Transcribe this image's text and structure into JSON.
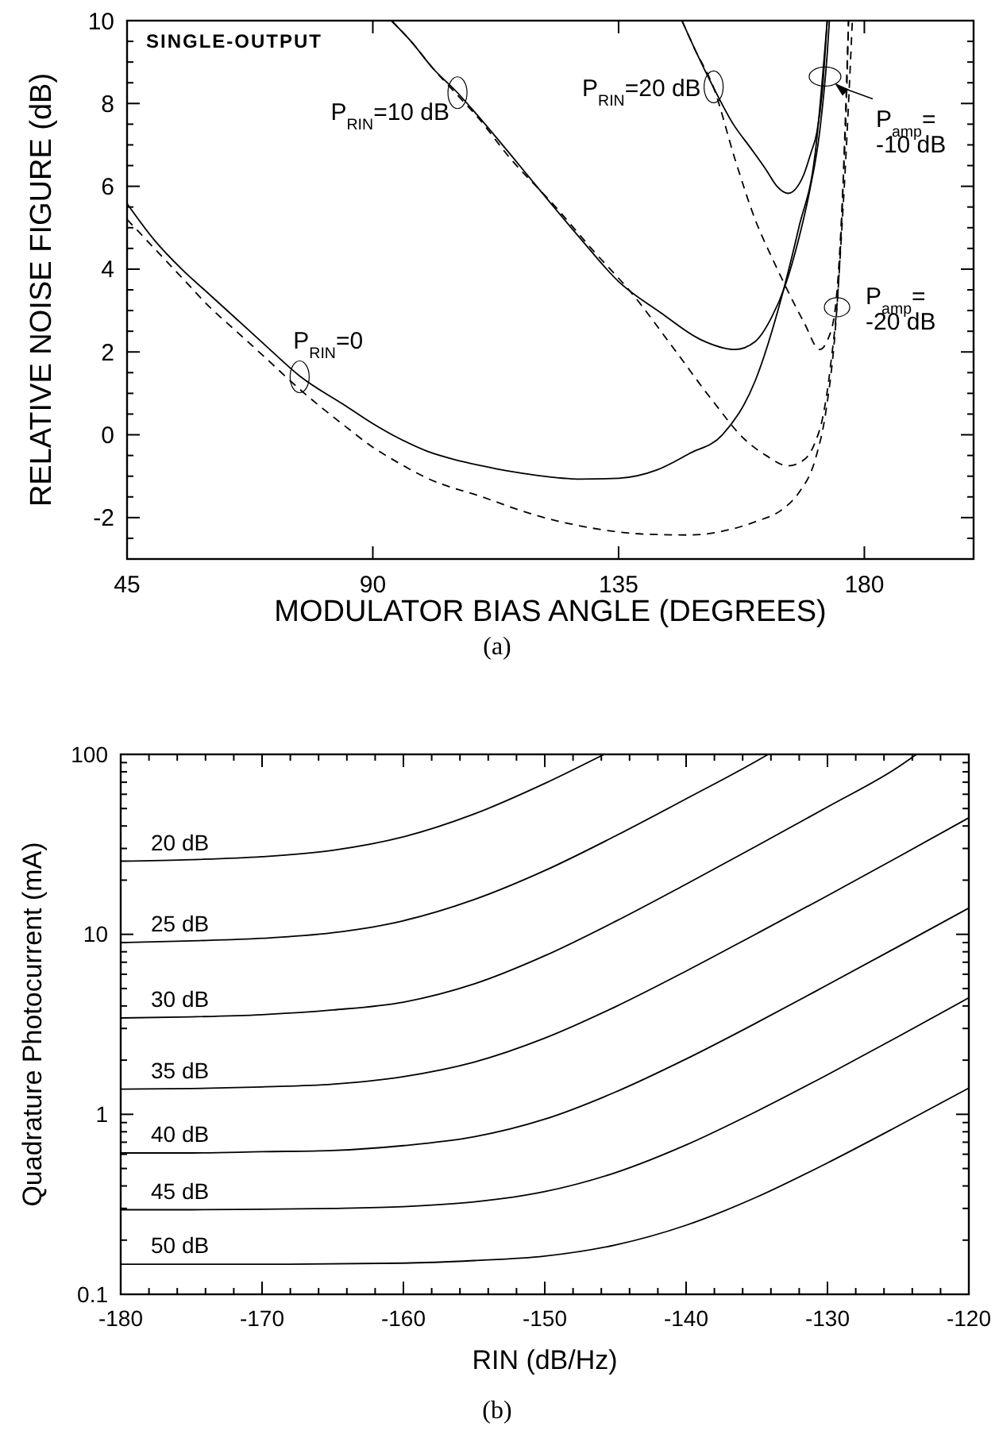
{
  "chart_data": [
    {
      "type": "line",
      "xlabel": "MODULATOR BIAS ANGLE (DEGREES)",
      "ylabel": "RELATIVE NOISE FIGURE (dB)",
      "xlim": [
        45,
        200
      ],
      "ylim": [
        -3,
        10
      ],
      "xticks": [
        45,
        90,
        135,
        180
      ],
      "yticks": [
        -2,
        {
          "value": -2.5,
          "label": null
        },
        {
          "value": -1.5,
          "label": null
        },
        {
          "value": -1,
          "label": null
        },
        {
          "value": -0.5,
          "label": null
        },
        0,
        {
          "value": 0.5,
          "label": null
        },
        {
          "value": 1,
          "label": null
        },
        {
          "value": 1.5,
          "label": null
        },
        2,
        {
          "value": 2.5,
          "label": null
        },
        {
          "value": 3,
          "label": null
        },
        {
          "value": 3.5,
          "label": null
        },
        4,
        {
          "value": 4.5,
          "label": null
        },
        {
          "value": 5,
          "label": null
        },
        {
          "value": 5.5,
          "label": null
        },
        6,
        {
          "value": 6.5,
          "label": null
        },
        {
          "value": 7,
          "label": null
        },
        {
          "value": 7.5,
          "label": null
        },
        8,
        {
          "value": 8.5,
          "label": null
        },
        {
          "value": 9,
          "label": null
        },
        {
          "value": 9.5,
          "label": null
        },
        10
      ],
      "series": [
        {
          "color": "#000000",
          "line_style": "solid",
          "x": [
            45,
            50,
            55,
            60,
            65,
            70,
            76.6,
            85,
            90,
            95,
            100,
            105,
            110,
            115,
            120,
            128,
            135,
            142,
            148,
            154,
            160,
            165,
            168,
            171,
            173.2
          ],
          "values": [
            5.58,
            4.7,
            4,
            3.4,
            2.8,
            2.2,
            1.42,
            0.7,
            0.27,
            -0.1,
            -0.4,
            -0.6,
            -0.75,
            -0.88,
            -0.98,
            -1.07,
            -1.05,
            -0.85,
            -0.45,
            0,
            1.3,
            3.4,
            5,
            6.8,
            10
          ]
        },
        {
          "color": "#000000",
          "line_style": "dashed",
          "x": [
            45,
            50,
            55,
            60,
            65,
            70,
            76.6,
            85,
            90,
            95,
            100,
            110,
            120,
            130,
            140,
            148,
            155,
            160,
            165,
            168,
            171,
            173,
            174.7,
            175.8,
            176.6,
            177.8
          ],
          "values": [
            5.2,
            4.5,
            3.8,
            3.1,
            2.5,
            1.9,
            1.1,
            0.2,
            -0.3,
            -0.7,
            -1.05,
            -1.5,
            -1.95,
            -2.25,
            -2.4,
            -2.42,
            -2.3,
            -2.1,
            -1.8,
            -1.4,
            -0.6,
            0.6,
            2.57,
            4.8,
            6.66,
            10
          ]
        },
        {
          "color": "#000000",
          "line_style": "solid",
          "x": [
            93.4,
            97,
            101,
            105.5,
            109,
            115,
            120,
            128,
            135,
            142.7,
            150,
            156.3,
            160,
            163,
            165.5,
            168,
            170,
            171.8,
            173.2,
            173.6
          ],
          "values": [
            10,
            9.5,
            8.85,
            8.26,
            7.74,
            6.8,
            6,
            4.74,
            3.7,
            2.95,
            2.3,
            2.06,
            2.25,
            2.83,
            3.6,
            4.74,
            5.9,
            7.3,
            9.2,
            10
          ]
        },
        {
          "color": "#000000",
          "line_style": "dashed",
          "x": [
            93.4,
            97,
            101,
            105.5,
            109,
            115,
            123.4,
            130,
            137.9,
            145,
            152.4,
            158,
            162,
            166,
            169,
            170.8,
            172.5,
            173.7,
            175.7,
            176.6,
            177.1
          ],
          "values": [
            10,
            9.5,
            8.85,
            8.2,
            7.7,
            6.7,
            5.51,
            4.5,
            3.34,
            2.1,
            0.79,
            -0.1,
            -0.5,
            -0.75,
            -0.6,
            -0.24,
            0.5,
            1.55,
            4.74,
            7.94,
            10
          ]
        },
        {
          "color": "#000000",
          "line_style": "solid",
          "x": [
            146.6,
            149,
            152.4,
            156,
            159.2,
            162,
            164,
            166,
            167.5,
            168.9,
            170.2,
            171.3,
            172.3,
            172.8,
            173.2
          ],
          "values": [
            10,
            9.3,
            8.38,
            7.5,
            6.92,
            6.4,
            6,
            5.83,
            5.95,
            6.28,
            6.8,
            7.3,
            8.3,
            9.2,
            10
          ]
        },
        {
          "color": "#000000",
          "line_style": "dashed",
          "x": [
            146.6,
            149,
            152.4,
            156.3,
            160.2,
            163,
            166,
            169,
            171.8,
            173.3,
            174.7,
            176.1,
            176.7,
            177.1
          ],
          "values": [
            10,
            9.3,
            8.38,
            6.66,
            5.13,
            4.3,
            3.47,
            2.7,
            2.06,
            2.3,
            3.08,
            6.02,
            8,
            10
          ]
        }
      ],
      "annotations": [
        "SINGLE-OUTPUT",
        {
          "text": "P$_{RIN}$=0",
          "x": 76.6,
          "y": 1.4
        },
        {
          "text": "P$_{RIN}$=10 dB",
          "x": 105.5,
          "y": 8.26
        },
        {
          "text": "P$_{RIN}$=20 dB",
          "x": 152.4,
          "y": 8.4
        },
        {
          "text": "P$_{amp}$=\n-10 dB",
          "x": 172.8,
          "y": 8.65
        },
        {
          "text": "P$_{amp}$=\n-20 dB",
          "x": 175,
          "y": 3.08
        },
        "(a)"
      ]
    },
    {
      "type": "line",
      "log": true,
      "xlabel": "RIN (dB/Hz)",
      "ylabel": "Quadrature Photocurrent (mA)",
      "xlim": [
        -180,
        -120
      ],
      "ylim": [
        0.1,
        100
      ],
      "xticks": [
        -180,
        {
          "value": -178,
          "label": null
        },
        {
          "value": -176,
          "label": null
        },
        {
          "value": -174,
          "label": null
        },
        {
          "value": -172,
          "label": null
        },
        -170,
        {
          "value": -168,
          "label": null
        },
        {
          "value": -166,
          "label": null
        },
        {
          "value": -164,
          "label": null
        },
        {
          "value": -162,
          "label": null
        },
        -160,
        {
          "value": -158,
          "label": null
        },
        {
          "value": -156,
          "label": null
        },
        {
          "value": -154,
          "label": null
        },
        {
          "value": -152,
          "label": null
        },
        -150,
        {
          "value": -148,
          "label": null
        },
        {
          "value": -146,
          "label": null
        },
        {
          "value": -144,
          "label": null
        },
        {
          "value": -142,
          "label": null
        },
        -140,
        {
          "value": -138,
          "label": null
        },
        {
          "value": -136,
          "label": null
        },
        {
          "value": -134,
          "label": null
        },
        {
          "value": -132,
          "label": null
        },
        -130,
        {
          "value": -128,
          "label": null
        },
        {
          "value": -126,
          "label": null
        },
        {
          "value": -124,
          "label": null
        },
        {
          "value": -122,
          "label": null
        },
        -120
      ],
      "yticks": [
        0.1,
        {
          "value": 0.2,
          "label": null
        },
        {
          "value": 0.3,
          "label": null
        },
        {
          "value": 0.4,
          "label": null
        },
        {
          "value": 0.5,
          "label": null
        },
        {
          "value": 0.6,
          "label": null
        },
        {
          "value": 0.7,
          "label": null
        },
        {
          "value": 0.8,
          "label": null
        },
        {
          "value": 0.9,
          "label": null
        },
        1,
        {
          "value": 2,
          "label": null
        },
        {
          "value": 3,
          "label": null
        },
        {
          "value": 4,
          "label": null
        },
        {
          "value": 5,
          "label": null
        },
        {
          "value": 6,
          "label": null
        },
        {
          "value": 7,
          "label": null
        },
        {
          "value": 8,
          "label": null
        },
        {
          "value": 9,
          "label": null
        },
        10,
        {
          "value": 20,
          "label": null
        },
        {
          "value": 30,
          "label": null
        },
        {
          "value": 40,
          "label": null
        },
        {
          "value": 50,
          "label": null
        },
        {
          "value": 60,
          "label": null
        },
        {
          "value": 70,
          "label": null
        },
        {
          "value": 80,
          "label": null
        },
        {
          "value": 90,
          "label": null
        },
        100
      ],
      "series": [
        {
          "name": "20 dB",
          "color": "#000000",
          "x": [
            -180,
            -175,
            -170,
            -165,
            -160,
            -155,
            -150,
            -145.8
          ],
          "values": [
            25.5,
            26,
            27,
            29.3,
            34.8,
            46.6,
            68.9,
            100
          ]
        },
        {
          "name": "25 dB",
          "color": "#000000",
          "x": [
            -180,
            -175,
            -170,
            -165,
            -160,
            -155,
            -150,
            -145,
            -140,
            -135,
            -134.2
          ],
          "values": [
            9,
            9.2,
            9.5,
            10.2,
            11.9,
            15.6,
            22.6,
            35.2,
            56.6,
            92,
            100
          ]
        },
        {
          "name": "30 dB",
          "color": "#000000",
          "x": [
            -180,
            -175,
            -170,
            -165,
            -160,
            -155,
            -150,
            -145,
            -140,
            -135,
            -130,
            -125,
            -123.7
          ],
          "values": [
            3.43,
            3.48,
            3.58,
            3.8,
            4.2,
            5.3,
            7.6,
            11.8,
            19,
            31,
            51,
            85,
            100
          ]
        },
        {
          "name": "35 dB",
          "color": "#000000",
          "x": [
            -180,
            -175,
            -170,
            -165,
            -160,
            -155,
            -150,
            -145,
            -140,
            -135,
            -130,
            -125,
            -120
          ],
          "values": [
            1.38,
            1.39,
            1.42,
            1.47,
            1.62,
            1.95,
            2.65,
            3.96,
            6.25,
            10.1,
            16.4,
            26.9,
            44.4
          ]
        },
        {
          "name": "40 dB",
          "color": "#000000",
          "x": [
            -180,
            -175,
            -170,
            -165,
            -160,
            -155,
            -150,
            -145,
            -140,
            -135,
            -130,
            -125,
            -120
          ],
          "values": [
            0.61,
            0.61,
            0.62,
            0.63,
            0.67,
            0.75,
            0.94,
            1.33,
            2.03,
            3.23,
            5.24,
            8.55,
            14
          ]
        },
        {
          "name": "45 dB",
          "color": "#000000",
          "x": [
            -180,
            -175,
            -170,
            -165,
            -160,
            -155,
            -150,
            -145,
            -140,
            -135,
            -130,
            -125,
            -120
          ],
          "values": [
            0.295,
            0.295,
            0.297,
            0.3,
            0.307,
            0.326,
            0.372,
            0.474,
            0.676,
            1.04,
            1.66,
            2.7,
            4.44
          ]
        },
        {
          "name": "50 dB",
          "color": "#000000",
          "x": [
            -180,
            -170,
            -160,
            -155,
            -150,
            -145,
            -140,
            -135,
            -130,
            -125,
            -120
          ],
          "values": [
            0.147,
            0.147,
            0.149,
            0.154,
            0.163,
            0.188,
            0.242,
            0.347,
            0.537,
            0.861,
            1.4
          ]
        }
      ],
      "annotations": [
        "(b)"
      ]
    }
  ]
}
